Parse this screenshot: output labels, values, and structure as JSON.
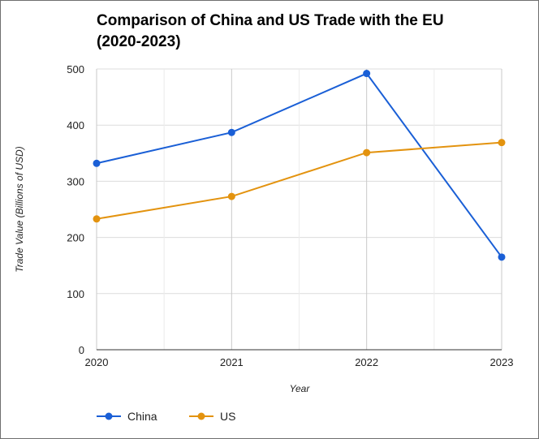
{
  "chart_data": {
    "type": "line",
    "title_lines": [
      "Comparison of China and US Trade with the EU",
      "(2020-2023)"
    ],
    "xlabel": "Year",
    "ylabel": "Trade Value (Billions of USD)",
    "categories": [
      "2020",
      "2021",
      "2022",
      "2023"
    ],
    "ylim": [
      0,
      500
    ],
    "yticks": [
      0,
      100,
      200,
      300,
      400,
      500
    ],
    "grid": true,
    "legend_position": "bottom-left",
    "series": [
      {
        "name": "China",
        "color": "#1a5fd6",
        "values": [
          332,
          387,
          492,
          165
        ]
      },
      {
        "name": "US",
        "color": "#e3930f",
        "values": [
          233,
          273,
          351,
          369
        ]
      }
    ]
  }
}
